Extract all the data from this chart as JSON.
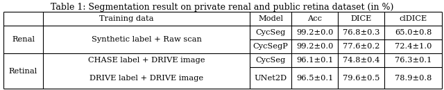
{
  "title": "Table 1: Segmentation result on private renal and public retina dataset (in %)",
  "title_fontsize": 9.0,
  "font_size": 8.2,
  "background_color": "#ffffff",
  "line_color": "#000000",
  "row_groups": [
    {
      "group_label": "Renal",
      "rows": [
        {
          "training": "Synthetic label + Raw scan",
          "model": "CycSeg",
          "acc": "99.2±0.0",
          "dice": "76.8±0.3",
          "cldice": "65.0±0.8"
        },
        {
          "training": "",
          "model": "CycSegP",
          "acc": "99.2±0.0",
          "dice": "77.6±0.2",
          "cldice": "72.4±1.0"
        }
      ]
    },
    {
      "group_label": "Retinal",
      "rows": [
        {
          "training": "CHASE label + DRIVE image",
          "model": "CycSeg",
          "acc": "96.1±0.1",
          "dice": "74.8±0.4",
          "cldice": "76.3±0.1"
        },
        {
          "training": "DRIVE label + DRIVE image",
          "model": "UNet2D",
          "acc": "96.5±0.1",
          "dice": "79.6±0.5",
          "cldice": "78.9±0.8"
        }
      ]
    }
  ]
}
